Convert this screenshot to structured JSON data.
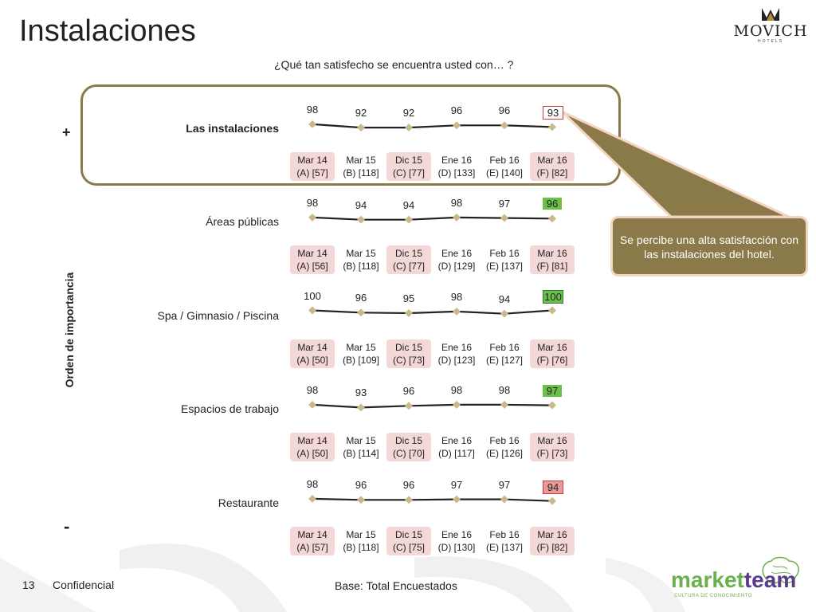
{
  "page": {
    "title": "Instalaciones",
    "question": "¿Qué tan satisfecho se encuentra usted con… ?",
    "importance_label": "Orden de importancia",
    "plus_sign": "+",
    "minus_sign": "-",
    "page_number": "13",
    "confidential": "Confidencial",
    "base": "Base: Total Encuestados",
    "callout": "Se percibe una alta satisfacción con las instalaciones del hotel.",
    "logo_brand": "MOVICH",
    "logo_sub": "HOTELS",
    "footer_brand_a": "market",
    "footer_brand_b": "team",
    "footer_tagline": "CULTURA DE CONOCIMIENTO"
  },
  "chart_data": [
    {
      "type": "line",
      "series": [
        {
          "name": "Las instalaciones",
          "values": [
            98,
            92,
            92,
            96,
            96,
            93
          ]
        }
      ],
      "categories": [
        "Mar 14",
        "Mar 15",
        "Dic 15",
        "Ene 16",
        "Feb 16",
        "Mar 16"
      ],
      "bases": [
        "(A) [57]",
        "(B) [118]",
        "(C) [77]",
        "(D) [133]",
        "(E) [140]",
        "(F) [82]"
      ],
      "last_marker": "box",
      "highlighted": true
    },
    {
      "type": "line",
      "series": [
        {
          "name": "Áreas públicas",
          "values": [
            98,
            94,
            94,
            98,
            97,
            96
          ]
        }
      ],
      "categories": [
        "Mar 14",
        "Mar 15",
        "Dic 15",
        "Ene 16",
        "Feb 16",
        "Mar 16"
      ],
      "bases": [
        "(A) [56]",
        "(B) [118]",
        "(C) [77]",
        "(D) [129]",
        "(E) [137]",
        "(F) [81]"
      ],
      "last_marker": "green"
    },
    {
      "type": "line",
      "series": [
        {
          "name": "Spa / Gimnasio / Piscina",
          "values": [
            100,
            96,
            95,
            98,
            94,
            100
          ]
        }
      ],
      "categories": [
        "Mar 14",
        "Mar 15",
        "Dic 15",
        "Ene 16",
        "Feb 16",
        "Mar 16"
      ],
      "bases": [
        "(A) [50]",
        "(B) [109]",
        "(C) [73]",
        "(D) [123]",
        "(E) [127]",
        "(F) [76]"
      ],
      "last_marker": "green-outline"
    },
    {
      "type": "line",
      "series": [
        {
          "name": "Espacios de trabajo",
          "values": [
            98,
            93,
            96,
            98,
            98,
            97
          ]
        }
      ],
      "categories": [
        "Mar 14",
        "Mar 15",
        "Dic 15",
        "Ene 16",
        "Feb 16",
        "Mar 16"
      ],
      "bases": [
        "(A) [50]",
        "(B) [114]",
        "(C) [70]",
        "(D) [117]",
        "(E) [126]",
        "(F) [73]"
      ],
      "last_marker": "green"
    },
    {
      "type": "line",
      "series": [
        {
          "name": "Restaurante",
          "values": [
            98,
            96,
            96,
            97,
            97,
            94
          ]
        }
      ],
      "categories": [
        "Mar 14",
        "Mar 15",
        "Dic 15",
        "Ene 16",
        "Feb 16",
        "Mar 16"
      ],
      "bases": [
        "(A) [57]",
        "(B) [118]",
        "(C) [75]",
        "(D) [130]",
        "(E) [137]",
        "(F) [82]"
      ],
      "last_marker": "red"
    }
  ],
  "colors": {
    "frame": "#8a7a4a",
    "marker": "#c8b88a",
    "line": "#222222",
    "shade": "#f4d7d7",
    "green": "#6cc04a",
    "red": "#e89a9a",
    "callout_bg": "#8a7a4a"
  }
}
